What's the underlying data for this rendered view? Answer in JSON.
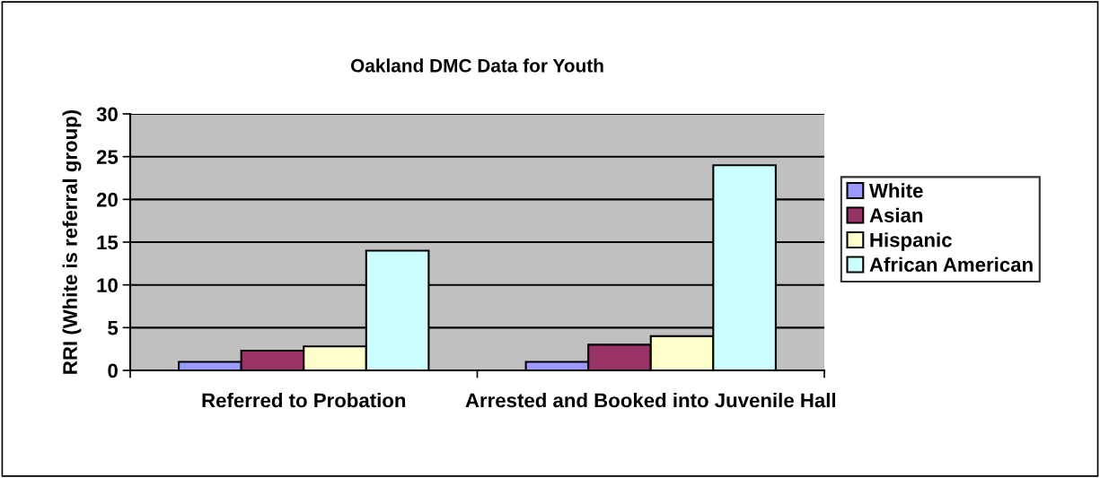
{
  "chart_data": {
    "type": "bar",
    "title": "Oakland DMC Data for Youth",
    "ylabel": "RRI (White is referral group)",
    "categories": [
      "Referred to Probation",
      "Arrested and Booked into Juvenile Hall"
    ],
    "series": [
      {
        "name": "White",
        "color": "#9999ff",
        "values": [
          1,
          1
        ]
      },
      {
        "name": "Asian",
        "color": "#993366",
        "values": [
          2.3,
          3
        ]
      },
      {
        "name": "Hispanic",
        "color": "#ffffcc",
        "values": [
          2.8,
          4
        ]
      },
      {
        "name": "African American",
        "color": "#ccffff",
        "values": [
          14,
          24
        ]
      }
    ],
    "ylim": [
      0,
      30
    ],
    "yticks": [
      0,
      5,
      10,
      15,
      20,
      25,
      30
    ],
    "grid": "y",
    "legend": "right"
  }
}
